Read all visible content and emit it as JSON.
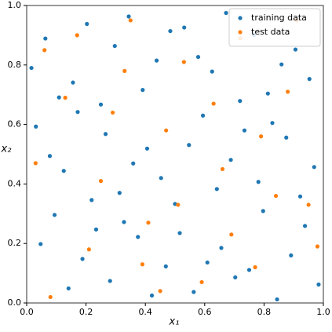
{
  "chart_data": {
    "type": "scatter",
    "xlabel": "x₁",
    "ylabel": "x₂",
    "xlim": [
      0,
      1
    ],
    "ylim": [
      0,
      1
    ],
    "xticks": [
      {
        "value": 0,
        "label": "0.0"
      },
      0.2,
      0.4,
      0.6,
      0.8,
      {
        "value": 1,
        "label": "1.0"
      }
    ],
    "yticks": [
      {
        "value": 0,
        "label": "0.0"
      },
      0.2,
      0.4,
      0.6,
      0.8,
      {
        "value": 1,
        "label": "1.0"
      }
    ],
    "grid": false,
    "legend": "upper right",
    "series": [
      {
        "name": "training data",
        "color": "#1f77b4",
        "x": [
          0.5,
          0.25,
          0.75,
          0.125,
          0.625,
          0.375,
          0.875,
          0.063,
          0.563,
          0.313,
          0.813,
          0.188,
          0.688,
          0.438,
          0.938,
          0.031,
          0.531,
          0.281,
          0.781,
          0.156,
          0.656,
          0.406,
          0.906,
          0.094,
          0.594,
          0.344,
          0.844,
          0.219,
          0.719,
          0.469,
          0.969,
          0.016,
          0.516,
          0.266,
          0.766,
          0.141,
          0.641,
          0.391,
          0.891,
          0.078,
          0.578,
          0.328,
          0.828,
          0.203,
          0.703,
          0.453,
          0.953,
          0.047,
          0.547,
          0.297,
          0.797,
          0.172,
          0.672,
          0.422,
          0.922,
          0.109,
          0.609,
          0.359,
          0.859,
          0.234,
          0.734,
          0.484,
          0.984
        ],
        "values": [
          0.333,
          0.667,
          0.111,
          0.444,
          0.778,
          0.222,
          0.556,
          0.889,
          0.037,
          0.37,
          0.704,
          0.148,
          0.481,
          0.815,
          0.259,
          0.593,
          0.926,
          0.074,
          0.407,
          0.741,
          0.185,
          0.519,
          0.852,
          0.296,
          0.63,
          0.963,
          0.012,
          0.346,
          0.679,
          0.123,
          0.457,
          0.79,
          0.235,
          0.568,
          0.901,
          0.049,
          0.383,
          0.716,
          0.16,
          0.494,
          0.827,
          0.272,
          0.605,
          0.938,
          0.086,
          0.42,
          0.753,
          0.198,
          0.531,
          0.864,
          0.309,
          0.642,
          0.975,
          0.025,
          0.358,
          0.691,
          0.136,
          0.469,
          0.802,
          0.247,
          0.58,
          0.914,
          0.062
        ]
      },
      {
        "name": "test data",
        "color": "#ff7f0e",
        "x": [
          0.08,
          0.17,
          0.29,
          0.41,
          0.53,
          0.66,
          0.77,
          0.88,
          0.95,
          0.03,
          0.21,
          0.35,
          0.47,
          0.59,
          0.72,
          0.84,
          0.13,
          0.25,
          0.39,
          0.51,
          0.63,
          0.79,
          0.91,
          0.06,
          0.45,
          0.98,
          0.33,
          0.69
        ],
        "values": [
          0.02,
          0.9,
          0.64,
          0.27,
          0.81,
          0.45,
          0.12,
          0.71,
          0.33,
          0.47,
          0.18,
          0.95,
          0.58,
          0.07,
          0.89,
          0.36,
          0.69,
          0.41,
          0.13,
          0.33,
          0.67,
          0.56,
          0.95,
          0.85,
          0.04,
          0.19,
          0.78,
          0.23
        ]
      }
    ]
  }
}
